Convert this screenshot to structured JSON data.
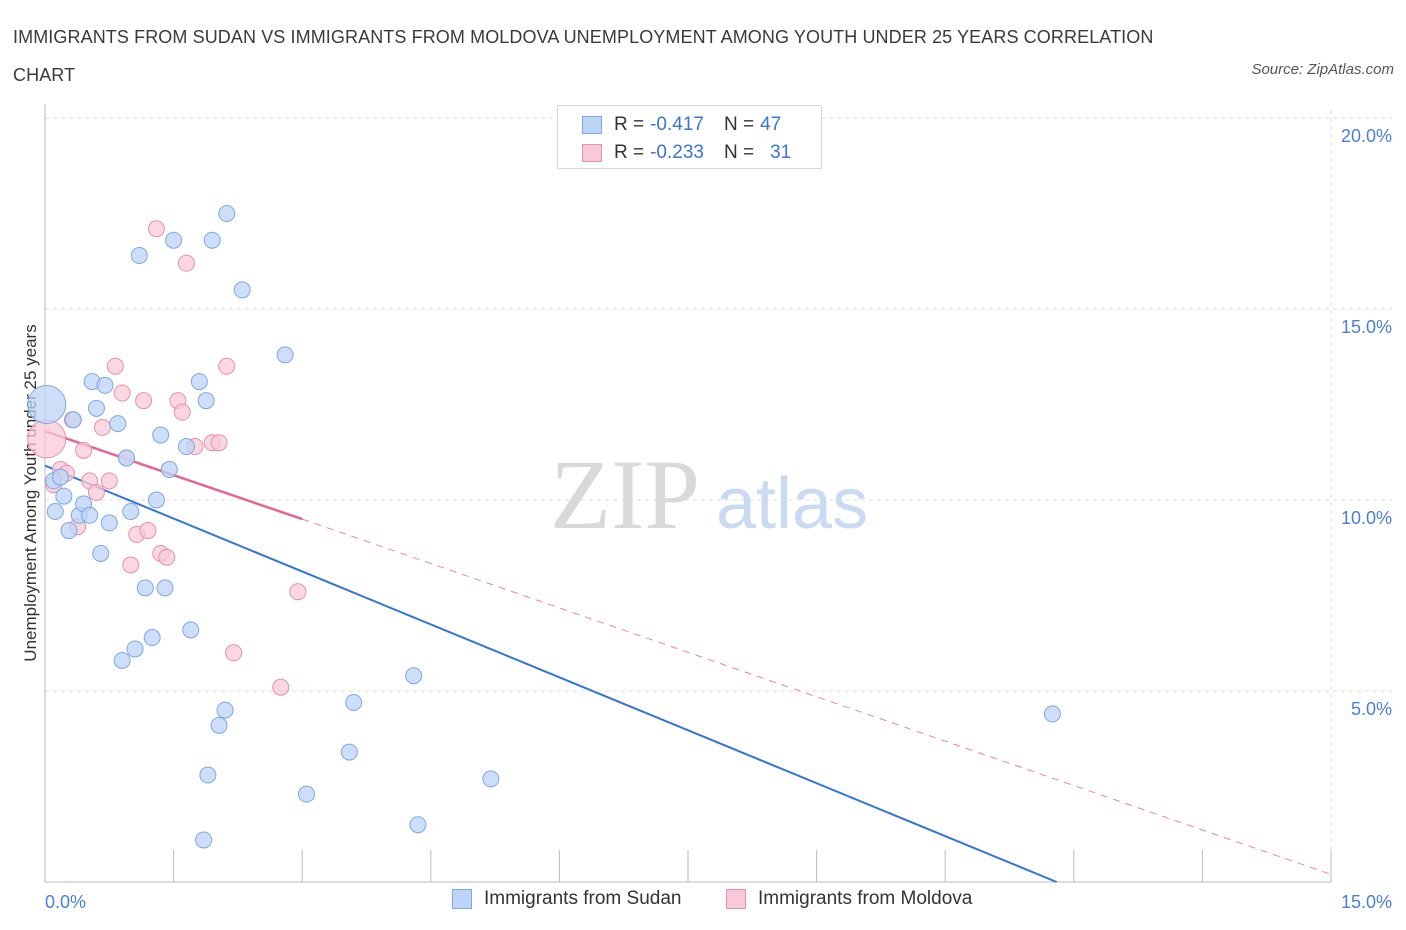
{
  "title": "IMMIGRANTS FROM SUDAN VS IMMIGRANTS FROM MOLDOVA UNEMPLOYMENT AMONG YOUTH UNDER 25 YEARS CORRELATION CHART",
  "source": "Source: ZipAtlas.com",
  "watermark": {
    "zip": "ZIP",
    "atlas": "atlas"
  },
  "legend_stats": [
    {
      "r_label": "R =",
      "r_value": "-0.417",
      "n_label": "N =",
      "n_value": "47",
      "color": "#a9c8f2"
    },
    {
      "r_label": "R =",
      "r_value": "-0.233",
      "n_label": "N =",
      "n_value": "31",
      "color": "#f5b6c8"
    }
  ],
  "colors": {
    "sudan_fill": "#bcd4f5",
    "sudan_stroke": "#7ea7e3",
    "sudan_line": "#3375d6",
    "moldova_fill": "#f8c9d7",
    "moldova_stroke": "#e890ad",
    "moldova_line": "#e06891",
    "tick_text": "#4a7fd4",
    "grid": "#dddddd"
  },
  "chart_data": {
    "type": "scatter",
    "title": "IMMIGRANTS FROM SUDAN VS IMMIGRANTS FROM MOLDOVA UNEMPLOYMENT AMONG YOUTH UNDER 25 YEARS CORRELATION CHART",
    "xlabel": "",
    "ylabel": "Unemployment Among Youth under 25 years",
    "xlim": [
      0,
      15
    ],
    "ylim": [
      0,
      20
    ],
    "x_tick_labels": [
      "0.0%",
      "15.0%"
    ],
    "y_ticks": [
      {
        "value": 5,
        "label": "5.0%"
      },
      {
        "value": 10,
        "label": "10.0%"
      },
      {
        "value": 15,
        "label": "15.0%"
      },
      {
        "value": 20,
        "label": "20.0%"
      }
    ],
    "grid": true,
    "legend_position": "bottom",
    "series": [
      {
        "name": "Immigrants from Sudan",
        "points": [
          {
            "x": 0.02,
            "y": 12.5,
            "size": "large"
          },
          {
            "x": 0.1,
            "y": 10.5
          },
          {
            "x": 0.12,
            "y": 9.7
          },
          {
            "x": 0.22,
            "y": 10.1
          },
          {
            "x": 0.28,
            "y": 9.2
          },
          {
            "x": 0.33,
            "y": 12.1
          },
          {
            "x": 0.4,
            "y": 9.6
          },
          {
            "x": 0.45,
            "y": 9.9
          },
          {
            "x": 0.52,
            "y": 9.6
          },
          {
            "x": 0.55,
            "y": 13.1
          },
          {
            "x": 0.6,
            "y": 12.4
          },
          {
            "x": 0.65,
            "y": 8.6
          },
          {
            "x": 0.7,
            "y": 13.0
          },
          {
            "x": 0.75,
            "y": 9.4
          },
          {
            "x": 0.85,
            "y": 12.0
          },
          {
            "x": 0.9,
            "y": 5.8
          },
          {
            "x": 0.95,
            "y": 11.1
          },
          {
            "x": 1.0,
            "y": 9.7
          },
          {
            "x": 1.05,
            "y": 6.1
          },
          {
            "x": 1.1,
            "y": 16.4
          },
          {
            "x": 1.17,
            "y": 7.7
          },
          {
            "x": 1.25,
            "y": 6.4
          },
          {
            "x": 1.3,
            "y": 10.0
          },
          {
            "x": 1.35,
            "y": 11.7
          },
          {
            "x": 1.4,
            "y": 7.7
          },
          {
            "x": 1.45,
            "y": 10.8
          },
          {
            "x": 1.5,
            "y": 16.8
          },
          {
            "x": 1.65,
            "y": 11.4
          },
          {
            "x": 1.7,
            "y": 6.6
          },
          {
            "x": 1.8,
            "y": 13.1
          },
          {
            "x": 1.85,
            "y": 1.1
          },
          {
            "x": 1.88,
            "y": 12.6
          },
          {
            "x": 1.9,
            "y": 2.8
          },
          {
            "x": 1.95,
            "y": 16.8
          },
          {
            "x": 2.03,
            "y": 4.1
          },
          {
            "x": 2.1,
            "y": 4.5
          },
          {
            "x": 2.12,
            "y": 17.5
          },
          {
            "x": 2.3,
            "y": 15.5
          },
          {
            "x": 2.8,
            "y": 13.8
          },
          {
            "x": 3.05,
            "y": 2.3
          },
          {
            "x": 3.55,
            "y": 3.4
          },
          {
            "x": 3.6,
            "y": 4.7
          },
          {
            "x": 4.3,
            "y": 5.4
          },
          {
            "x": 4.35,
            "y": 1.5
          },
          {
            "x": 5.2,
            "y": 2.7
          },
          {
            "x": 11.75,
            "y": 4.4
          },
          {
            "x": 0.18,
            "y": 10.6
          }
        ],
        "trend": {
          "x0": 0,
          "y0": 10.9,
          "x1": 11.8,
          "y1": 0.0
        }
      },
      {
        "name": "Immigrants from Moldova",
        "points": [
          {
            "x": 0.02,
            "y": 11.6,
            "size": "large"
          },
          {
            "x": 0.1,
            "y": 10.4
          },
          {
            "x": 0.18,
            "y": 10.8
          },
          {
            "x": 0.25,
            "y": 10.7
          },
          {
            "x": 0.32,
            "y": 12.1
          },
          {
            "x": 0.38,
            "y": 9.3
          },
          {
            "x": 0.45,
            "y": 11.3
          },
          {
            "x": 0.52,
            "y": 10.5
          },
          {
            "x": 0.6,
            "y": 10.2
          },
          {
            "x": 0.67,
            "y": 11.9
          },
          {
            "x": 0.75,
            "y": 10.5
          },
          {
            "x": 0.82,
            "y": 13.5
          },
          {
            "x": 0.9,
            "y": 12.8
          },
          {
            "x": 0.95,
            "y": 11.1
          },
          {
            "x": 1.0,
            "y": 8.3
          },
          {
            "x": 1.07,
            "y": 9.1
          },
          {
            "x": 1.15,
            "y": 12.6
          },
          {
            "x": 1.2,
            "y": 9.2
          },
          {
            "x": 1.3,
            "y": 17.1
          },
          {
            "x": 1.35,
            "y": 8.6
          },
          {
            "x": 1.42,
            "y": 8.5
          },
          {
            "x": 1.55,
            "y": 12.6
          },
          {
            "x": 1.6,
            "y": 12.3
          },
          {
            "x": 1.65,
            "y": 16.2
          },
          {
            "x": 1.75,
            "y": 11.4
          },
          {
            "x": 1.95,
            "y": 11.5
          },
          {
            "x": 2.03,
            "y": 11.5
          },
          {
            "x": 2.12,
            "y": 13.5
          },
          {
            "x": 2.2,
            "y": 6.0
          },
          {
            "x": 2.75,
            "y": 5.1
          },
          {
            "x": 2.95,
            "y": 7.6
          }
        ],
        "trend": {
          "x0": 0,
          "y0": 11.8,
          "x1": 3.0,
          "y1": 9.5
        },
        "trend_extension": {
          "x0": 3.0,
          "y0": 9.5,
          "x1": 15.0,
          "y1": 0.2
        }
      }
    ]
  }
}
